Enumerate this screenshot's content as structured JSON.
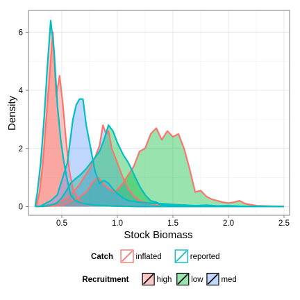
{
  "chart_data": {
    "type": "area",
    "xlabel": "Stock Biomass",
    "ylabel": "Density",
    "xlim": [
      0.2,
      2.55
    ],
    "ylim": [
      -0.3,
      6.75
    ],
    "x_ticks": [
      0.5,
      1.0,
      1.5,
      2.0,
      2.5
    ],
    "x_tick_labels": [
      "0.5",
      "1.0",
      "1.5",
      "2.0",
      "2.5"
    ],
    "y_ticks": [
      0,
      2,
      4,
      6
    ],
    "y_tick_labels": [
      "0",
      "2",
      "4",
      "6"
    ],
    "grid": true,
    "legend_position": "bottom",
    "legends": [
      {
        "title": "Catch",
        "entries": [
          {
            "label": "inflated",
            "color": "#F8766D"
          },
          {
            "label": "reported",
            "color": "#00BFC4"
          }
        ]
      },
      {
        "title": "Recruitment",
        "entries": [
          {
            "label": "high",
            "fill": "#F8766D"
          },
          {
            "label": "low",
            "fill": "#00BA38"
          },
          {
            "label": "med",
            "fill": "#619CFF"
          }
        ]
      }
    ],
    "series": [
      {
        "catch": "inflated",
        "recruitment": "low",
        "points": [
          [
            0.28,
            0
          ],
          [
            0.4,
            0.02
          ],
          [
            0.5,
            0.05
          ],
          [
            0.58,
            0.2
          ],
          [
            0.65,
            0.3
          ],
          [
            0.72,
            0.5
          ],
          [
            0.78,
            0.85
          ],
          [
            0.83,
            1.0
          ],
          [
            0.88,
            0.75
          ],
          [
            0.93,
            0.6
          ],
          [
            0.98,
            0.5
          ],
          [
            1.05,
            0.8
          ],
          [
            1.1,
            1.1
          ],
          [
            1.15,
            1.4
          ],
          [
            1.2,
            1.9
          ],
          [
            1.25,
            2.0
          ],
          [
            1.3,
            2.5
          ],
          [
            1.35,
            2.7
          ],
          [
            1.4,
            2.3
          ],
          [
            1.45,
            2.6
          ],
          [
            1.5,
            2.4
          ],
          [
            1.55,
            2.5
          ],
          [
            1.6,
            2.0
          ],
          [
            1.65,
            1.3
          ],
          [
            1.7,
            0.5
          ],
          [
            1.75,
            0.55
          ],
          [
            1.8,
            0.35
          ],
          [
            1.85,
            0.25
          ],
          [
            1.9,
            0.2
          ],
          [
            1.95,
            0.15
          ],
          [
            2.0,
            0.12
          ],
          [
            2.05,
            0.15
          ],
          [
            2.1,
            0.2
          ],
          [
            2.15,
            0.1
          ],
          [
            2.25,
            0.03
          ],
          [
            2.5,
            0
          ]
        ]
      },
      {
        "catch": "inflated",
        "recruitment": "high",
        "points": [
          [
            0.27,
            0
          ],
          [
            0.3,
            0.5
          ],
          [
            0.33,
            1.5
          ],
          [
            0.36,
            3.0
          ],
          [
            0.39,
            4.5
          ],
          [
            0.42,
            6.0
          ],
          [
            0.45,
            3.8
          ],
          [
            0.48,
            4.5
          ],
          [
            0.51,
            3.5
          ],
          [
            0.54,
            2.2
          ],
          [
            0.57,
            1.2
          ],
          [
            0.6,
            0.6
          ],
          [
            0.65,
            0.25
          ],
          [
            0.7,
            0.1
          ],
          [
            0.8,
            0.05
          ],
          [
            1.0,
            0.02
          ],
          [
            1.3,
            0
          ],
          [
            2.5,
            0
          ]
        ]
      },
      {
        "catch": "inflated",
        "recruitment": "med",
        "points": [
          [
            0.32,
            0
          ],
          [
            0.4,
            0.05
          ],
          [
            0.5,
            0.2
          ],
          [
            0.56,
            0.3
          ],
          [
            0.6,
            0.5
          ],
          [
            0.65,
            0.7
          ],
          [
            0.7,
            1.0
          ],
          [
            0.75,
            1.3
          ],
          [
            0.8,
            1.7
          ],
          [
            0.84,
            2.1
          ],
          [
            0.87,
            2.8
          ],
          [
            0.9,
            2.5
          ],
          [
            0.92,
            2.6
          ],
          [
            0.95,
            2.0
          ],
          [
            1.0,
            1.5
          ],
          [
            1.05,
            1.0
          ],
          [
            1.1,
            0.6
          ],
          [
            1.15,
            0.35
          ],
          [
            1.2,
            0.2
          ],
          [
            1.3,
            0.1
          ],
          [
            1.4,
            0.05
          ],
          [
            1.6,
            0
          ],
          [
            2.5,
            0
          ]
        ]
      },
      {
        "catch": "reported",
        "recruitment": "low",
        "points": [
          [
            0.26,
            0
          ],
          [
            0.35,
            0.02
          ],
          [
            0.45,
            0.1
          ],
          [
            0.5,
            0.3
          ],
          [
            0.55,
            0.6
          ],
          [
            0.58,
            0.8
          ],
          [
            0.62,
            0.95
          ],
          [
            0.67,
            1.1
          ],
          [
            0.72,
            1.3
          ],
          [
            0.76,
            1.5
          ],
          [
            0.8,
            1.7
          ],
          [
            0.84,
            1.9
          ],
          [
            0.88,
            2.3
          ],
          [
            0.92,
            2.8
          ],
          [
            0.96,
            2.6
          ],
          [
            1.0,
            2.2
          ],
          [
            1.05,
            1.8
          ],
          [
            1.1,
            1.5
          ],
          [
            1.15,
            1.1
          ],
          [
            1.2,
            0.7
          ],
          [
            1.25,
            0.4
          ],
          [
            1.3,
            0.2
          ],
          [
            1.35,
            0.15
          ],
          [
            1.4,
            0.05
          ],
          [
            1.5,
            0.02
          ],
          [
            1.6,
            0.05
          ],
          [
            1.7,
            0.03
          ],
          [
            1.8,
            0.05
          ],
          [
            1.9,
            0.02
          ],
          [
            2.0,
            0.03
          ],
          [
            2.1,
            0.01
          ],
          [
            2.5,
            0
          ]
        ]
      },
      {
        "catch": "reported",
        "recruitment": "high",
        "points": [
          [
            0.26,
            0
          ],
          [
            0.28,
            0.5
          ],
          [
            0.31,
            1.5
          ],
          [
            0.34,
            3.0
          ],
          [
            0.37,
            4.8
          ],
          [
            0.4,
            6.4
          ],
          [
            0.43,
            5.4
          ],
          [
            0.46,
            3.5
          ],
          [
            0.49,
            2.3
          ],
          [
            0.52,
            1.5
          ],
          [
            0.55,
            0.9
          ],
          [
            0.58,
            0.4
          ],
          [
            0.62,
            0.2
          ],
          [
            0.7,
            0.1
          ],
          [
            0.8,
            0.05
          ],
          [
            0.95,
            0.02
          ],
          [
            1.2,
            0
          ],
          [
            2.5,
            0
          ]
        ]
      },
      {
        "catch": "reported",
        "recruitment": "med",
        "points": [
          [
            0.3,
            0
          ],
          [
            0.4,
            0.2
          ],
          [
            0.46,
            0.4
          ],
          [
            0.5,
            0.9
          ],
          [
            0.55,
            1.5
          ],
          [
            0.6,
            3.0
          ],
          [
            0.63,
            3.5
          ],
          [
            0.66,
            3.7
          ],
          [
            0.69,
            3.7
          ],
          [
            0.72,
            2.8
          ],
          [
            0.76,
            2.0
          ],
          [
            0.8,
            1.2
          ],
          [
            0.84,
            0.8
          ],
          [
            0.88,
            0.9
          ],
          [
            0.92,
            0.8
          ],
          [
            0.96,
            0.6
          ],
          [
            1.0,
            0.45
          ],
          [
            1.05,
            0.3
          ],
          [
            1.1,
            0.2
          ],
          [
            1.2,
            0.15
          ],
          [
            1.3,
            0.12
          ],
          [
            1.4,
            0.1
          ],
          [
            1.5,
            0.07
          ],
          [
            1.6,
            0.05
          ],
          [
            1.7,
            0.02
          ],
          [
            1.9,
            0.01
          ],
          [
            2.5,
            0
          ]
        ]
      }
    ]
  }
}
